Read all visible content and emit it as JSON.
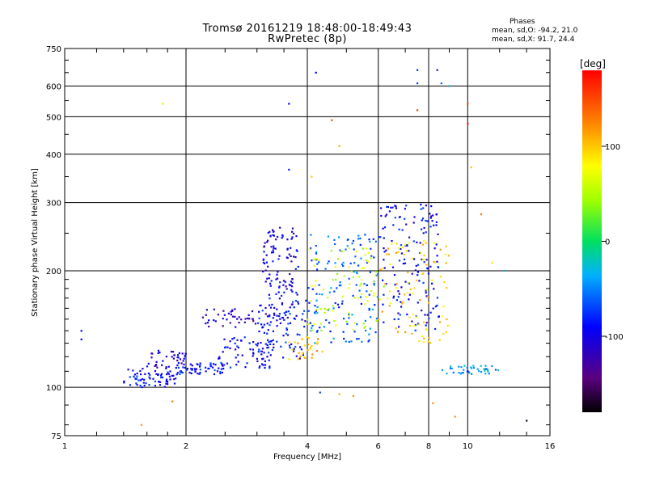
{
  "header": {
    "title_line1": "Tromsø 20161219 18:48:00-18:49:43",
    "title_line2": "RwPretec (8p)",
    "stats_heading": "Phases",
    "stats_o": "mean, sd,O: -94.2, 21.0",
    "stats_x": "mean, sd,X:  91.7, 24.4"
  },
  "colorbar": {
    "unit": "[deg]",
    "min": -180,
    "max": 180,
    "ticks": [
      {
        "value": 100,
        "label": "100"
      },
      {
        "value": 0,
        "label": "0"
      },
      {
        "value": -100,
        "label": "-100"
      }
    ]
  },
  "chart_data": {
    "type": "scatter",
    "title": "Tromsø 20161219 18:48:00-18:49:43",
    "subtitle": "RwPretec (8p)",
    "xlabel": "Frequency [MHz]",
    "ylabel": "Stationary phase Virtual Height [km]",
    "x_scale": "log",
    "y_scale": "log",
    "xlim": [
      1,
      16
    ],
    "ylim": [
      75,
      750
    ],
    "grid": true,
    "x_ticks": [
      {
        "value": 1,
        "label": "1"
      },
      {
        "value": 2,
        "label": "2"
      },
      {
        "value": 4,
        "label": "4"
      },
      {
        "value": 6,
        "label": "6"
      },
      {
        "value": 8,
        "label": "8"
      },
      {
        "value": 10,
        "label": "10"
      },
      {
        "value": 16,
        "label": "16"
      }
    ],
    "y_ticks": [
      {
        "value": 75,
        "label": "75"
      },
      {
        "value": 100,
        "label": "100"
      },
      {
        "value": 200,
        "label": "200"
      },
      {
        "value": 300,
        "label": "300"
      },
      {
        "value": 400,
        "label": "400"
      },
      {
        "value": 500,
        "label": "500"
      },
      {
        "value": 600,
        "label": "600"
      },
      {
        "value": 750,
        "label": "750"
      }
    ],
    "color_variable": "phase [deg]",
    "traces": [
      {
        "x_range": [
          1.4,
          1.9
        ],
        "y_range": [
          100,
          112
        ],
        "phase": -90,
        "count": 70
      },
      {
        "x_range": [
          1.6,
          2.0
        ],
        "y_range": [
          112,
          125
        ],
        "phase": -110,
        "count": 40
      },
      {
        "x_range": [
          1.9,
          2.5
        ],
        "y_range": [
          108,
          116
        ],
        "phase": -85,
        "count": 55
      },
      {
        "x_range": [
          2.4,
          3.3
        ],
        "y_range": [
          112,
          135
        ],
        "phase": -95,
        "count": 70
      },
      {
        "x_range": [
          3.0,
          4.0
        ],
        "y_range": [
          118,
          170
        ],
        "phase": -85,
        "count": 80
      },
      {
        "x_range": [
          2.2,
          3.0
        ],
        "y_range": [
          143,
          160
        ],
        "phase": -115,
        "count": 40
      },
      {
        "x_range": [
          3.1,
          3.8
        ],
        "y_range": [
          150,
          260
        ],
        "phase": -100,
        "count": 120
      },
      {
        "x_range": [
          3.6,
          4.4
        ],
        "y_range": [
          118,
          135
        ],
        "phase": 105,
        "count": 30
      },
      {
        "x_range": [
          4.0,
          6.0
        ],
        "y_range": [
          130,
          250
        ],
        "phase": -60,
        "count": 140
      },
      {
        "x_range": [
          4.0,
          6.2
        ],
        "y_range": [
          140,
          230
        ],
        "phase": 60,
        "count": 80
      },
      {
        "x_range": [
          6.0,
          8.5
        ],
        "y_range": [
          140,
          300
        ],
        "phase": -90,
        "count": 150
      },
      {
        "x_range": [
          6.0,
          9.0
        ],
        "y_range": [
          130,
          240
        ],
        "phase": 95,
        "count": 90
      },
      {
        "x_range": [
          8.6,
          12.0
        ],
        "y_range": [
          108,
          114
        ],
        "phase": -40,
        "count": 40
      }
    ],
    "isolated_points": [
      {
        "x": 1.1,
        "y": 140,
        "phase": -90
      },
      {
        "x": 1.1,
        "y": 133,
        "phase": -90
      },
      {
        "x": 1.75,
        "y": 540,
        "phase": 60
      },
      {
        "x": 1.55,
        "y": 80,
        "phase": 120
      },
      {
        "x": 1.85,
        "y": 92,
        "phase": 130
      },
      {
        "x": 3.6,
        "y": 540,
        "phase": -90
      },
      {
        "x": 3.6,
        "y": 365,
        "phase": -80
      },
      {
        "x": 4.2,
        "y": 650,
        "phase": -90
      },
      {
        "x": 4.6,
        "y": 490,
        "phase": 150
      },
      {
        "x": 4.8,
        "y": 420,
        "phase": 110
      },
      {
        "x": 4.1,
        "y": 350,
        "phase": 100
      },
      {
        "x": 7.5,
        "y": 660,
        "phase": -80
      },
      {
        "x": 7.5,
        "y": 610,
        "phase": -70
      },
      {
        "x": 7.5,
        "y": 520,
        "phase": 150
      },
      {
        "x": 8.4,
        "y": 660,
        "phase": -130
      },
      {
        "x": 8.6,
        "y": 610,
        "phase": -60
      },
      {
        "x": 9.0,
        "y": 600,
        "phase": -40
      },
      {
        "x": 10.0,
        "y": 540,
        "phase": 150
      },
      {
        "x": 10.0,
        "y": 480,
        "phase": 170
      },
      {
        "x": 10.2,
        "y": 370,
        "phase": 100
      },
      {
        "x": 10.8,
        "y": 280,
        "phase": 130
      },
      {
        "x": 11.5,
        "y": 210,
        "phase": 90
      },
      {
        "x": 12.3,
        "y": 200,
        "phase": -30
      },
      {
        "x": 14.0,
        "y": 82,
        "phase": -170
      },
      {
        "x": 4.3,
        "y": 97,
        "phase": -70
      },
      {
        "x": 4.8,
        "y": 96,
        "phase": 110
      },
      {
        "x": 5.2,
        "y": 95,
        "phase": 120
      },
      {
        "x": 8.2,
        "y": 91,
        "phase": 120
      },
      {
        "x": 9.3,
        "y": 84,
        "phase": 120
      },
      {
        "x": 10.0,
        "y": 110,
        "phase": -90
      }
    ]
  }
}
